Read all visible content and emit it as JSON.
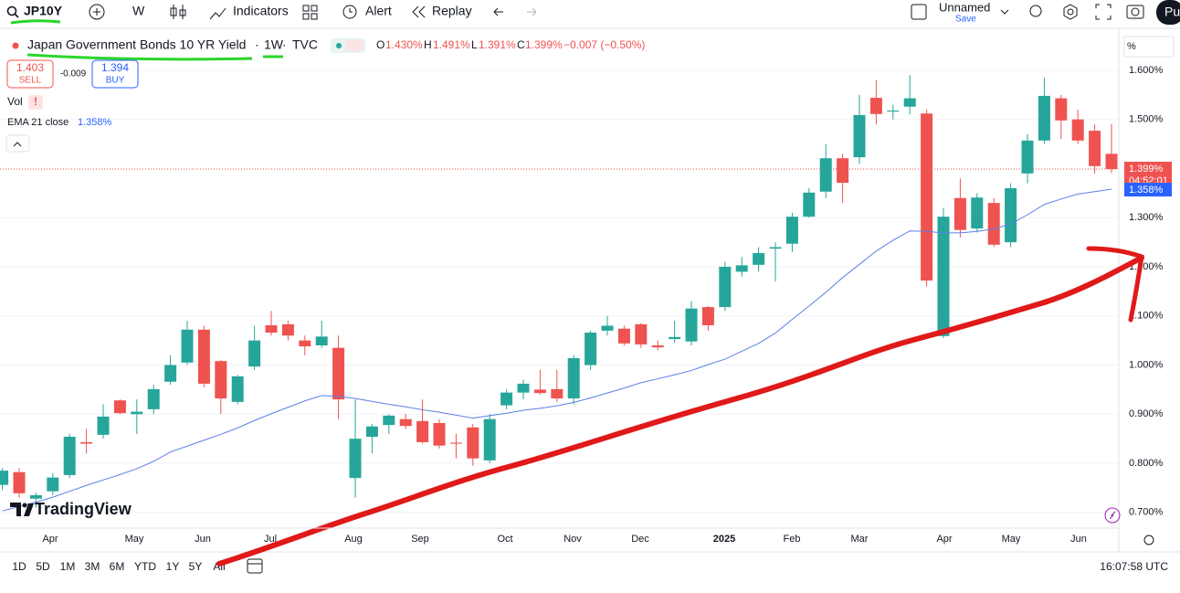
{
  "toolbar": {
    "symbol": "JP10Y",
    "interval": "W",
    "indicators": "Indicators",
    "alert": "Alert",
    "replay": "Replay",
    "layout_name": "Unnamed",
    "save": "Save",
    "publish": "Pu"
  },
  "legend": {
    "title": "Japan Government Bonds 10 YR Yield",
    "interval": "1W",
    "source": "TVC",
    "sep": "·",
    "o_key": "O",
    "o": "1.430%",
    "h_key": "H",
    "h": "1.491%",
    "l_key": "L",
    "l": "1.391%",
    "c_key": "C",
    "c": "1.399%",
    "change": "−0.007 (−0.50%)",
    "sell_price": "1.403",
    "sell": "SELL",
    "spread": "-0.009",
    "buy_price": "1.394",
    "buy": "BUY",
    "vol": "Vol",
    "ema_label": "EMA 21 close",
    "ema_value": "1.358%"
  },
  "price_tags": {
    "last": "1.399%",
    "countdown": "04:52:01",
    "ema": "1.358%"
  },
  "axis_unit": "%",
  "logo": "TradingView",
  "time_labels": [
    "Apr",
    "May",
    "Jun",
    "Jul",
    "Aug",
    "Sep",
    "Oct",
    "Nov",
    "Dec",
    "2025",
    "Feb",
    "Mar",
    "Apr",
    "May",
    "Jun"
  ],
  "ranges": [
    "1D",
    "5D",
    "1M",
    "3M",
    "6M",
    "YTD",
    "1Y",
    "5Y",
    "All"
  ],
  "clock": "16:07:58 UTC",
  "chart_data": {
    "type": "candlestick",
    "up_color": "#26a69a",
    "down_color": "#ef5350",
    "ylim": [
      0.668,
      1.665
    ],
    "yticks": [
      {
        "value": 0.7,
        "label": "0.700%"
      },
      {
        "value": 0.8,
        "label": "0.800%"
      },
      {
        "value": 0.9,
        "label": "0.900%"
      },
      {
        "value": 1.0,
        "label": "1.000%"
      },
      {
        "value": 1.1,
        "label": "1.100%"
      },
      {
        "value": 1.2,
        "label": "1.200%"
      },
      {
        "value": 1.3,
        "label": "1.300%"
      },
      {
        "value": 1.5,
        "label": "1.500%"
      },
      {
        "value": 1.6,
        "label": "1.600%"
      }
    ],
    "last_price": 1.399,
    "ohlc": [
      [
        0.756,
        0.79,
        0.745,
        0.785
      ],
      [
        0.782,
        0.79,
        0.73,
        0.739
      ],
      [
        0.728,
        0.74,
        0.71,
        0.735
      ],
      [
        0.743,
        0.78,
        0.735,
        0.771
      ],
      [
        0.776,
        0.86,
        0.77,
        0.854
      ],
      [
        0.843,
        0.87,
        0.82,
        0.84
      ],
      [
        0.858,
        0.92,
        0.85,
        0.895
      ],
      [
        0.928,
        0.93,
        0.9,
        0.902
      ],
      [
        0.9,
        0.93,
        0.86,
        0.905
      ],
      [
        0.91,
        0.96,
        0.9,
        0.951
      ],
      [
        0.966,
        1.02,
        0.96,
        1.0
      ],
      [
        1.005,
        1.09,
        1.0,
        1.072
      ],
      [
        1.072,
        1.08,
        0.955,
        0.962
      ],
      [
        1.008,
        1.01,
        0.9,
        0.932
      ],
      [
        0.925,
        0.98,
        0.92,
        0.977
      ],
      [
        0.997,
        1.08,
        0.99,
        1.05
      ],
      [
        1.081,
        1.11,
        1.06,
        1.066
      ],
      [
        1.083,
        1.09,
        1.05,
        1.06
      ],
      [
        1.05,
        1.06,
        1.02,
        1.038
      ],
      [
        1.04,
        1.09,
        1.035,
        1.058
      ],
      [
        1.035,
        1.06,
        0.89,
        0.93
      ],
      [
        0.77,
        0.93,
        0.73,
        0.85
      ],
      [
        0.854,
        0.88,
        0.82,
        0.875
      ],
      [
        0.878,
        0.9,
        0.86,
        0.897
      ],
      [
        0.89,
        0.9,
        0.87,
        0.876
      ],
      [
        0.886,
        0.93,
        0.84,
        0.843
      ],
      [
        0.882,
        0.89,
        0.83,
        0.836
      ],
      [
        0.842,
        0.86,
        0.81,
        0.84
      ],
      [
        0.873,
        0.88,
        0.795,
        0.81
      ],
      [
        0.806,
        0.9,
        0.8,
        0.89
      ],
      [
        0.918,
        0.95,
        0.91,
        0.944
      ],
      [
        0.944,
        0.97,
        0.93,
        0.962
      ],
      [
        0.95,
        0.99,
        0.94,
        0.943
      ],
      [
        0.951,
        0.99,
        0.925,
        0.932
      ],
      [
        0.932,
        1.02,
        0.92,
        1.014
      ],
      [
        1.0,
        1.07,
        0.99,
        1.066
      ],
      [
        1.07,
        1.1,
        1.06,
        1.08
      ],
      [
        1.074,
        1.08,
        1.04,
        1.044
      ],
      [
        1.083,
        1.085,
        1.035,
        1.042
      ],
      [
        1.04,
        1.05,
        1.03,
        1.036
      ],
      [
        1.053,
        1.09,
        1.045,
        1.057
      ],
      [
        1.048,
        1.13,
        1.04,
        1.115
      ],
      [
        1.118,
        1.12,
        1.07,
        1.081
      ],
      [
        1.118,
        1.21,
        1.11,
        1.2
      ],
      [
        1.19,
        1.22,
        1.18,
        1.203
      ],
      [
        1.204,
        1.24,
        1.19,
        1.228
      ],
      [
        1.237,
        1.25,
        1.17,
        1.24
      ],
      [
        1.247,
        1.31,
        1.23,
        1.302
      ],
      [
        1.302,
        1.36,
        1.3,
        1.351
      ],
      [
        1.353,
        1.45,
        1.34,
        1.421
      ],
      [
        1.421,
        1.43,
        1.33,
        1.371
      ],
      [
        1.423,
        1.55,
        1.41,
        1.509
      ],
      [
        1.544,
        1.58,
        1.49,
        1.511
      ],
      [
        1.516,
        1.53,
        1.5,
        1.518
      ],
      [
        1.526,
        1.59,
        1.51,
        1.543
      ],
      [
        1.512,
        1.52,
        1.16,
        1.172
      ],
      [
        1.059,
        1.32,
        1.055,
        1.302
      ],
      [
        1.34,
        1.38,
        1.26,
        1.275
      ],
      [
        1.278,
        1.35,
        1.27,
        1.341
      ],
      [
        1.33,
        1.34,
        1.24,
        1.245
      ],
      [
        1.25,
        1.37,
        1.24,
        1.36
      ],
      [
        1.39,
        1.47,
        1.37,
        1.457
      ],
      [
        1.457,
        1.585,
        1.45,
        1.548
      ],
      [
        1.543,
        1.55,
        1.46,
        1.498
      ],
      [
        1.5,
        1.52,
        1.45,
        1.457
      ],
      [
        1.477,
        1.49,
        1.39,
        1.405
      ],
      [
        1.43,
        1.491,
        1.391,
        1.399
      ]
    ],
    "ema": {
      "name": "EMA 21 close",
      "color": "#5b7fe6",
      "values": [
        0.703,
        0.712,
        0.721,
        0.731,
        0.743,
        0.755,
        0.766,
        0.777,
        0.789,
        0.804,
        0.823,
        0.835,
        0.847,
        0.859,
        0.872,
        0.887,
        0.901,
        0.914,
        0.927,
        0.938,
        0.936,
        0.932,
        0.926,
        0.92,
        0.915,
        0.909,
        0.904,
        0.898,
        0.892,
        0.897,
        0.902,
        0.908,
        0.912,
        0.917,
        0.924,
        0.933,
        0.943,
        0.953,
        0.964,
        0.972,
        0.98,
        0.989,
        1.001,
        1.012,
        1.028,
        1.044,
        1.065,
        1.093,
        1.12,
        1.148,
        1.178,
        1.205,
        1.232,
        1.254,
        1.273,
        1.272,
        1.269,
        1.269,
        1.272,
        1.277,
        1.287,
        1.306,
        1.327,
        1.338,
        1.348,
        1.353,
        1.358
      ]
    }
  }
}
